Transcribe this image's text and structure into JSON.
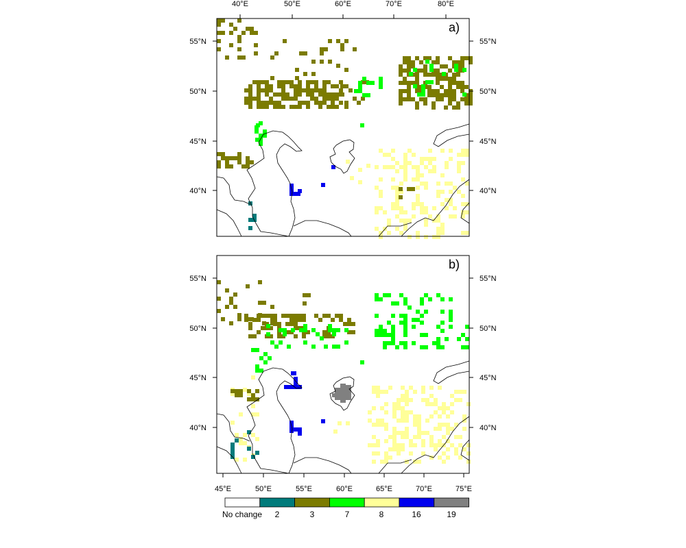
{
  "panels": [
    {
      "letter": "a)",
      "top_axis_labels": [
        "40°E",
        "50°E",
        "60°E",
        "70°E",
        "80°E"
      ],
      "left_axis_labels": [
        "55°N",
        "50°N",
        "45°N",
        "40°N"
      ],
      "right_axis_labels": [
        "55°N",
        "50°N",
        "45°N",
        "40°N"
      ]
    },
    {
      "letter": "b)",
      "bottom_axis_labels": [
        "45°E",
        "50°E",
        "55°E",
        "60°E",
        "65°E",
        "70°E",
        "75°E"
      ],
      "left_axis_labels": [
        "55°N",
        "50°N",
        "45°N",
        "40°N"
      ],
      "right_axis_labels": [
        "55°N",
        "50°N",
        "45°N",
        "40°N"
      ]
    }
  ],
  "legend": {
    "categories": [
      {
        "label": "No change",
        "color": "#ffffff"
      },
      {
        "label": "2",
        "color": "#007b7b"
      },
      {
        "label": "3",
        "color": "#7b7b00"
      },
      {
        "label": "7",
        "color": "#00ff00"
      },
      {
        "label": "8",
        "color": "#ffff99"
      },
      {
        "label": "16",
        "color": "#0000ee"
      },
      {
        "label": "19",
        "color": "#808080"
      }
    ]
  },
  "colors": {
    "class_2": "#007b7b",
    "class_3": "#7b7b00",
    "class_7": "#00ff00",
    "class_8": "#ffff99",
    "class_16": "#0000ee",
    "class_19": "#808080",
    "coastline": "#000000"
  }
}
